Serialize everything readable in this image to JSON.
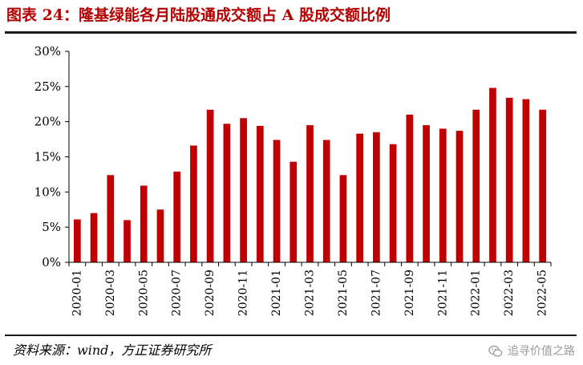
{
  "title": "图表 24：隆基绿能各月陆股通成交额占 A 股成交额比例",
  "source": "资料来源：wind，方正证券研究所",
  "watermark": "追寻价值之路",
  "colors": {
    "title": "#b40000",
    "bar": "#c00000"
  },
  "chart_data": {
    "type": "bar",
    "title": "",
    "xlabel": "",
    "ylabel": "",
    "ylim": [
      0,
      30
    ],
    "y_ticks": [
      "0%",
      "5%",
      "10%",
      "15%",
      "20%",
      "25%",
      "30%"
    ],
    "y_tick_values": [
      0,
      5,
      10,
      15,
      20,
      25,
      30
    ],
    "x_tick_labels": [
      "2020-01",
      "2020-03",
      "2020-05",
      "2020-07",
      "2020-09",
      "2020-11",
      "2021-01",
      "2021-03",
      "2021-05",
      "2021-07",
      "2021-09",
      "2021-11",
      "2022-01",
      "2022-03",
      "2022-05"
    ],
    "categories": [
      "2020-01",
      "2020-02",
      "2020-03",
      "2020-04",
      "2020-05",
      "2020-06",
      "2020-07",
      "2020-08",
      "2020-09",
      "2020-10",
      "2020-11",
      "2020-12",
      "2021-01",
      "2021-02",
      "2021-03",
      "2021-04",
      "2021-05",
      "2021-06",
      "2021-07",
      "2021-08",
      "2021-09",
      "2021-10",
      "2021-11",
      "2021-12",
      "2022-01",
      "2022-02",
      "2022-03",
      "2022-04",
      "2022-05"
    ],
    "values": [
      6.1,
      7.0,
      12.4,
      6.0,
      10.9,
      7.5,
      12.9,
      16.6,
      21.7,
      19.7,
      20.5,
      19.4,
      17.4,
      14.3,
      19.5,
      17.4,
      12.4,
      18.3,
      18.5,
      16.8,
      21.0,
      19.5,
      19.0,
      18.7,
      21.7,
      24.8,
      23.4,
      23.2,
      21.7
    ],
    "grid": false,
    "legend": "none"
  }
}
